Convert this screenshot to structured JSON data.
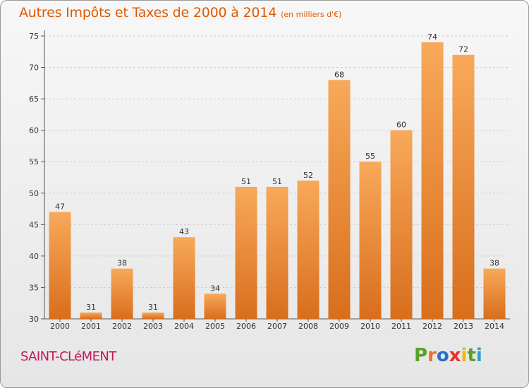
{
  "title": "Autres Impôts et Taxes de 2000 à 2014",
  "subtitle": "(en milliers d'€)",
  "commune": "SAINT-CLéMENT",
  "logo": {
    "letters": [
      "P",
      "r",
      "o",
      "x",
      "i",
      "t",
      "i"
    ],
    "colors": [
      "#5aa02c",
      "#e8712a",
      "#2a6fc9",
      "#e8312a",
      "#f2b701",
      "#5aa02c",
      "#2a9fd6"
    ]
  },
  "colors": {
    "bar_top": "#f8a95a",
    "bar_bottom": "#d86e1c",
    "title": "#e05a00",
    "commune": "#c2185b"
  },
  "chart_data": {
    "type": "bar",
    "title": "Autres Impôts et Taxes de 2000 à 2014",
    "subtitle": "(en milliers d'€)",
    "categories": [
      "2000",
      "2001",
      "2002",
      "2003",
      "2004",
      "2005",
      "2006",
      "2007",
      "2008",
      "2009",
      "2010",
      "2011",
      "2012",
      "2013",
      "2014"
    ],
    "values": [
      47,
      31,
      38,
      31,
      43,
      34,
      51,
      51,
      52,
      68,
      55,
      60,
      74,
      72,
      38
    ],
    "ylim": [
      30,
      75
    ],
    "yticks": [
      30,
      35,
      40,
      45,
      50,
      55,
      60,
      65,
      70,
      75
    ],
    "grid": true,
    "xlabel": "",
    "ylabel": ""
  }
}
